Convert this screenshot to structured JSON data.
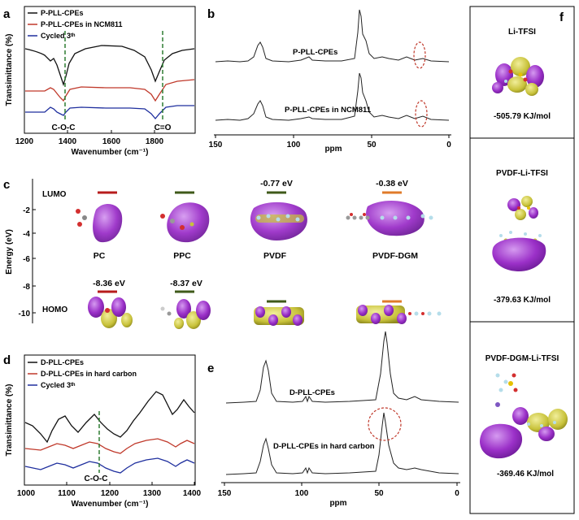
{
  "panels": {
    "a": {
      "letter": "a",
      "ylabel": "Transimittance (%)",
      "xlabel": "Wavenumber (cm⁻¹)",
      "xticks": [
        "1200",
        "1400",
        "1600",
        "1800"
      ],
      "legend": [
        "P-PLL-CPEs",
        "P-PLL-CPEs in NCM811",
        "Cycled 3ᵗʰ"
      ],
      "annotations": [
        "C-O-C",
        "C=O"
      ]
    },
    "b": {
      "letter": "b",
      "xlabel": "ppm",
      "xticks": [
        "150",
        "100",
        "50",
        "0"
      ],
      "labels": [
        "P-PLL-CPEs",
        "P-PLL-CPEs in NCM811"
      ]
    },
    "c": {
      "letter": "c",
      "ylabel": "Energy (eV)",
      "yticks": [
        "-2",
        "-4",
        "-6",
        "-8",
        "-10"
      ],
      "lumo_label": "LUMO",
      "homo_label": "HOMO",
      "molecules": [
        "PC",
        "PPC",
        "PVDF",
        "PVDF-DGM"
      ],
      "lumo_values": [
        "",
        "",
        "-0.77 eV",
        "-0.38 eV"
      ],
      "homo_values": [
        "-8.36 eV",
        "-8.37 eV",
        "",
        ""
      ]
    },
    "d": {
      "letter": "d",
      "ylabel": "Transimittance (%)",
      "xlabel": "Wavenumber (cm⁻¹)",
      "xticks": [
        "1000",
        "1100",
        "1200",
        "1300",
        "1400"
      ],
      "legend": [
        "D-PLL-CPEs",
        "D-PLL-CPEs in hard carbon",
        "Cycled 3ᵗʰ"
      ],
      "annotations": [
        "C-O-C"
      ]
    },
    "e": {
      "letter": "e",
      "xlabel": "ppm",
      "xticks": [
        "150",
        "100",
        "50",
        "0"
      ],
      "labels": [
        "D-PLL-CPEs",
        "D-PLL-CPEs in hard carbon"
      ]
    },
    "f": {
      "letter": "f",
      "boxes": [
        {
          "title": "Li-TFSI",
          "energy": "-505.79 KJ/mol"
        },
        {
          "title": "PVDF-Li-TFSI",
          "energy": "-379.63 KJ/mol"
        },
        {
          "title": "PVDF-DGM-Li-TFSI",
          "energy": "-369.46 KJ/mol"
        }
      ]
    }
  },
  "colors": {
    "black": "#111111",
    "red": "#c0392b",
    "blue": "#1f2f9e",
    "green": "#2e7d32",
    "purple": "#9b30c8",
    "yellow": "#c8c23a",
    "orange": "#e07b2a",
    "darkred": "#b71c1c",
    "olive": "#3f5a1a"
  }
}
